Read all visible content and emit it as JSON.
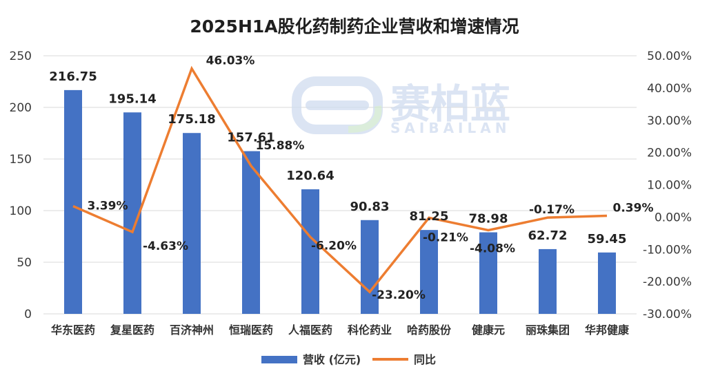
{
  "chart_data": {
    "type": "bar",
    "title": "2025H1A股化药制药企业营收和增速情况",
    "categories": [
      "华东医药",
      "复星医药",
      "百济神州",
      "恒瑞医药",
      "人福医药",
      "科伦药业",
      "哈药股份",
      "健康元",
      "丽珠集团",
      "华邦健康"
    ],
    "series": [
      {
        "name": "营收 (亿元)",
        "type": "bar",
        "axis": "left",
        "color": "#4472C4",
        "values": [
          216.75,
          195.14,
          175.18,
          157.61,
          120.64,
          90.83,
          81.25,
          78.98,
          62.72,
          59.45
        ],
        "labels": [
          "216.75",
          "195.14",
          "175.18",
          "157.61",
          "120.64",
          "90.83",
          "81.25",
          "78.98",
          "62.72",
          "59.45"
        ]
      },
      {
        "name": "同比",
        "type": "line",
        "axis": "right",
        "color": "#ED7D31",
        "values": [
          3.39,
          -4.63,
          46.03,
          15.88,
          -6.2,
          -23.2,
          -0.21,
          -4.08,
          -0.17,
          0.39
        ],
        "labels": [
          "3.39%",
          "-4.63%",
          "46.03%",
          "15.88%",
          "-6.20%",
          "-23.20%",
          "-0.21%",
          "-4.08%",
          "-0.17%",
          "0.39%"
        ]
      }
    ],
    "y_left": {
      "ylim": [
        0,
        250
      ],
      "ticks": [
        "0",
        "50",
        "100",
        "150",
        "200",
        "250"
      ]
    },
    "y_right": {
      "ylim": [
        -30,
        50
      ],
      "ticks": [
        "-30.00%",
        "-20.00%",
        "-10.00%",
        "0.00%",
        "10.00%",
        "20.00%",
        "30.00%",
        "40.00%",
        "50.00%"
      ]
    },
    "grid": true,
    "legend": "bottom"
  },
  "watermark": {
    "text": "赛柏蓝",
    "subtext": "SAIBAILAN"
  }
}
